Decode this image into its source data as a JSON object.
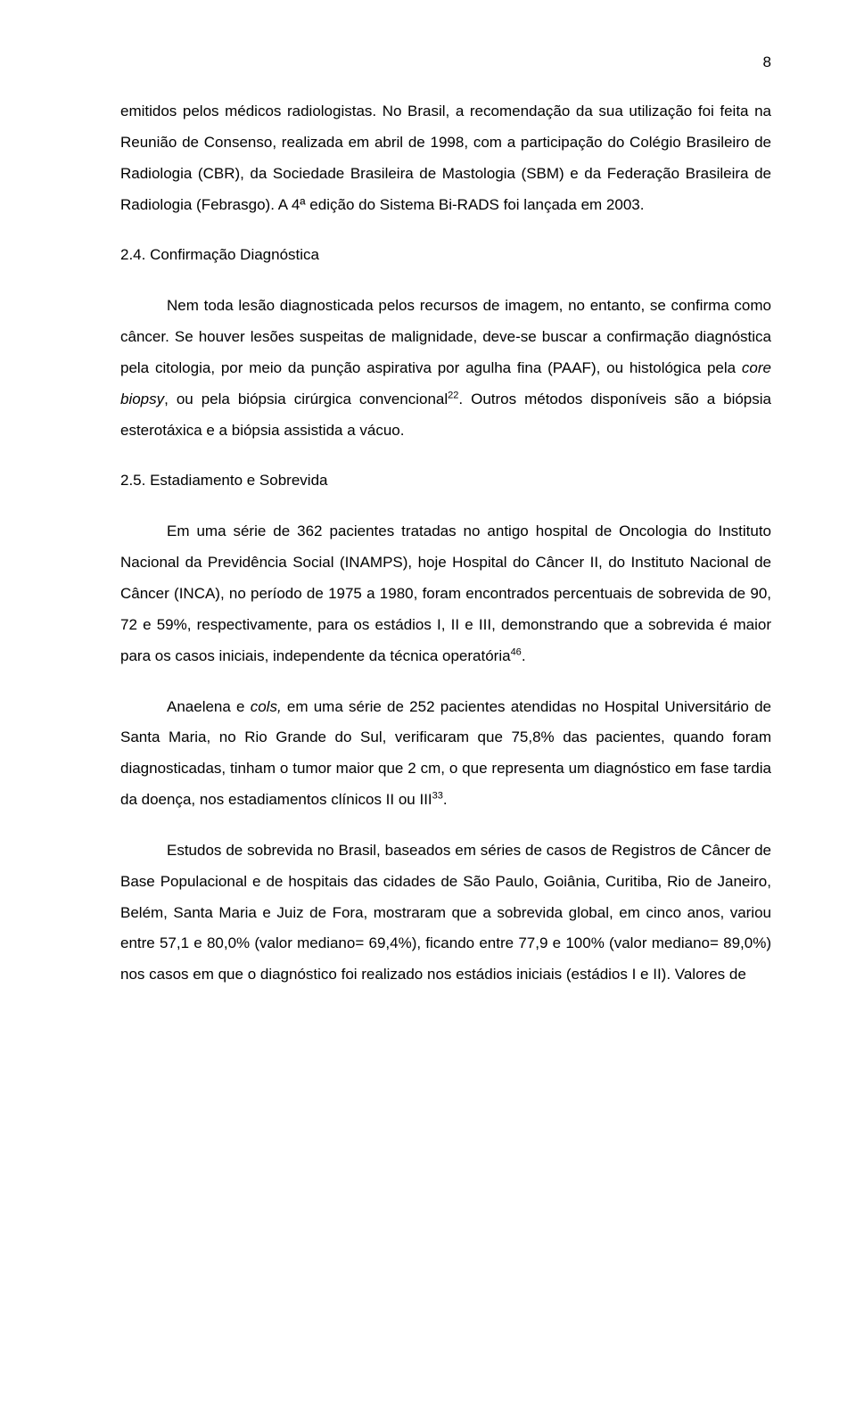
{
  "page_number": "8",
  "para1_part1": "emitidos pelos médicos radiologistas. No Brasil, a recomendação da sua utilização foi feita na Reunião de Consenso, realizada em abril de 1998, com a participação do Colégio Brasileiro de Radiologia (CBR), da Sociedade Brasileira de Mastologia (SBM) e da Federação Brasileira de Radiologia (Febrasgo). A 4ª edição do Sistema Bi-RADS foi lançada em 2003.",
  "heading1": "2.4. Confirmação Diagnóstica",
  "para2_a": "Nem toda lesão diagnosticada pelos recursos de imagem, no entanto, se confirma como câncer. Se houver lesões suspeitas de malignidade, deve-se buscar a confirmação diagnóstica pela citologia, por meio da punção aspirativa por agulha fina (PAAF), ou histológica pela ",
  "para2_italic": "core biopsy",
  "para2_b": ", ou pela biópsia cirúrgica convencional",
  "para2_sup": "22",
  "para2_c": ". Outros métodos disponíveis são a biópsia esterotáxica e a biópsia assistida a vácuo.",
  "heading2": "2.5. Estadiamento e Sobrevida",
  "para3_a": "Em uma série de 362 pacientes tratadas no antigo hospital de Oncologia do Instituto Nacional da Previdência Social (INAMPS), hoje Hospital do Câncer II, do Instituto Nacional de Câncer (INCA), no período de 1975 a 1980, foram encontrados percentuais de sobrevida de 90, 72 e 59%, respectivamente, para os estádios I, II e III, demonstrando que a sobrevida é maior para os casos iniciais, independente da técnica operatória",
  "para3_sup": "46",
  "para3_b": ".",
  "para4_a": "Anaelena e ",
  "para4_italic": "cols,",
  "para4_b": " em uma série de 252 pacientes atendidas no Hospital Universitário de Santa Maria, no Rio Grande do Sul, verificaram que 75,8% das pacientes, quando foram diagnosticadas, tinham o tumor maior que 2 cm, o que representa um diagnóstico em fase tardia da doença, nos estadiamentos clínicos II ou III",
  "para4_sup": "33",
  "para4_c": ".",
  "para5": "Estudos de sobrevida no Brasil, baseados em séries de casos de Registros de Câncer de Base Populacional e de hospitais das cidades de São Paulo, Goiânia, Curitiba, Rio de Janeiro, Belém, Santa Maria e Juiz de Fora, mostraram que a sobrevida global, em cinco anos, variou entre 57,1 e 80,0% (valor mediano= 69,4%), ficando entre 77,9 e 100% (valor mediano= 89,0%) nos casos em que o diagnóstico foi realizado nos estádios iniciais (estádios I e II). Valores de"
}
